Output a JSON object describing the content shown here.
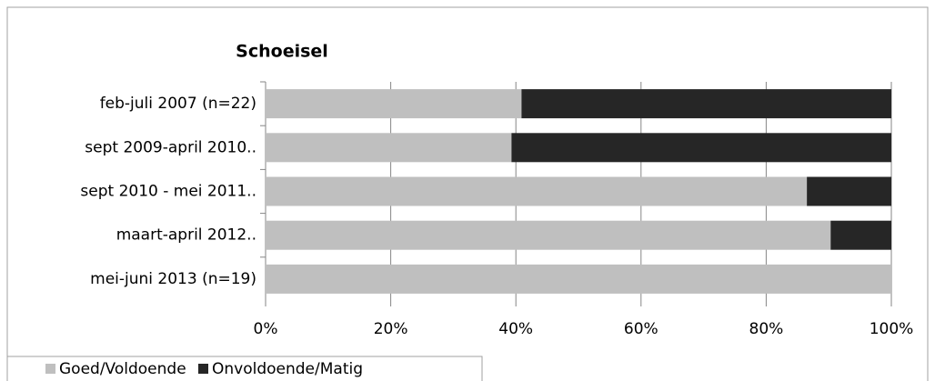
{
  "chart_data": {
    "type": "stacked_barh",
    "title": "Schoeisel",
    "categories": [
      "feb-juli 2007 (n=22)",
      "sept 2009-april 2010..",
      "sept 2010 - mei 2011..",
      "maart-april 2012..",
      "mei-juni 2013 (n=19)"
    ],
    "series": [
      {
        "name": "Goed/Voldoende",
        "color": "#bfbfbf",
        "values": [
          40.9,
          39.3,
          86.5,
          90.3,
          100
        ]
      },
      {
        "name": "Onvoldoende/Matig",
        "color": "#262626",
        "values": [
          59.1,
          60.7,
          13.5,
          9.7,
          0
        ]
      }
    ],
    "xlim": [
      0,
      100
    ],
    "xticks": [
      {
        "value": 0,
        "label": "0%"
      },
      {
        "value": 20,
        "label": "20%"
      },
      {
        "value": 40,
        "label": "40%"
      },
      {
        "value": 60,
        "label": "60%"
      },
      {
        "value": 80,
        "label": "80%"
      },
      {
        "value": 100,
        "label": "100%"
      }
    ],
    "grid": true,
    "legend": "bottom-left"
  }
}
